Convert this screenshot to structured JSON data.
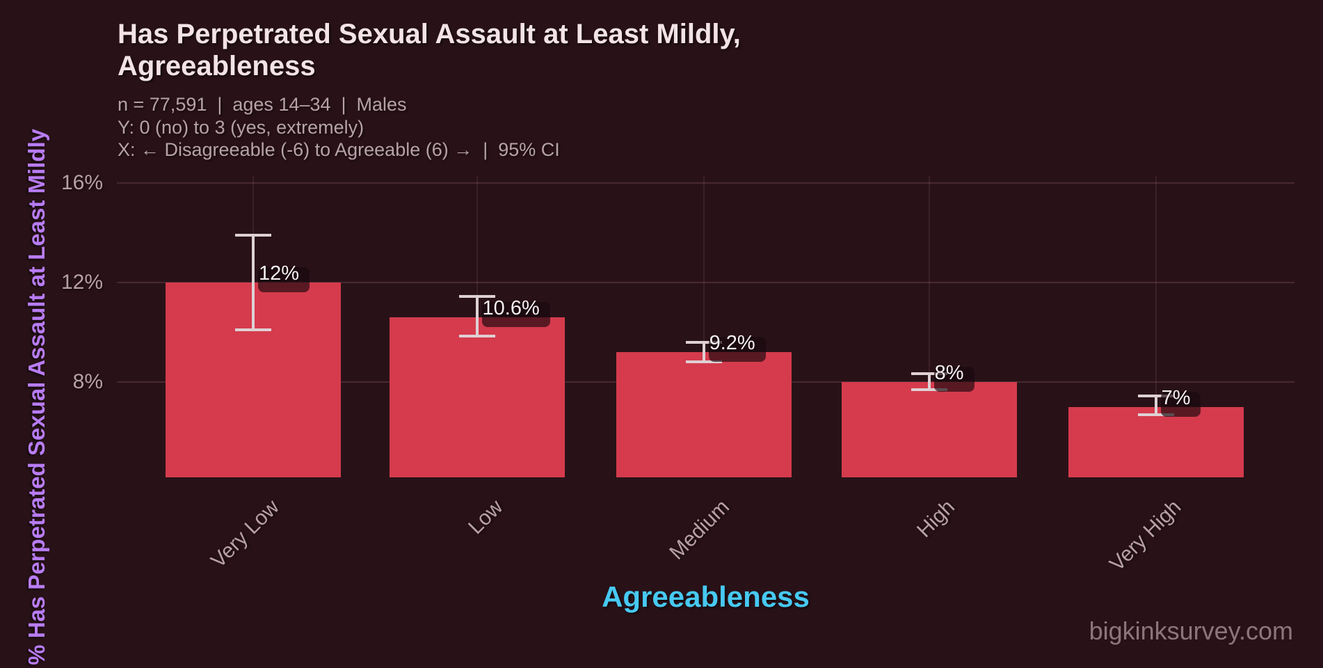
{
  "header": {
    "title_line1": "Has Perpetrated Sexual Assault at Least Mildly,",
    "title_line2": "Agreeableness",
    "subtitle_line1": "n = 77,591  |  ages 14–34  |  Males",
    "subtitle_line2": "Y: 0 (no) to 3 (yes, extremely)",
    "subtitle_line3": "X: ← Disagreeable (-6) to Agreeable (6) →  |  95% CI"
  },
  "watermark": "bigkinksurvey.com",
  "chart_data": {
    "type": "bar",
    "title": "Has Perpetrated Sexual Assault at Least Mildly, Agreeableness",
    "categories": [
      "Very Low",
      "Low",
      "Medium",
      "High",
      "Very High"
    ],
    "values": [
      12,
      10.6,
      9.2,
      8,
      7
    ],
    "value_labels": [
      "12%",
      "10.6%",
      "9.2%",
      "8%",
      "7%"
    ],
    "ci_low": [
      10.1,
      9.85,
      8.8,
      7.7,
      6.7
    ],
    "ci_high": [
      13.9,
      11.45,
      9.6,
      8.35,
      7.45
    ],
    "ci_level": "95% CI",
    "xlabel": "Agreeableness",
    "ylabel": "% Has Perpetrated Sexual Assault at Least Mildly",
    "ylim": [
      4.17,
      16.28
    ],
    "yticks": [
      16,
      12,
      8
    ],
    "ytick_labels": [
      "16%",
      "12%",
      "8%"
    ],
    "grid": true,
    "legend": false,
    "sample_n": "77,591",
    "age_range": "14–34",
    "group": "Males"
  },
  "colors": {
    "background": "#281218",
    "bar": "#d53b4d",
    "error_bar": "#ded0d4",
    "grid_h": "rgba(240,153,175,0.17)",
    "grid_v": "rgba(240,153,175,0.10)",
    "title": "#f3e3e6",
    "subtitle": "#b6a2a8",
    "tick": "#b7a0a5",
    "y_axis_label": "#b87cf4",
    "x_axis_title": "#47c9f2",
    "watermark": "#8e757d",
    "bar_label_text": "#f7eef1",
    "bar_label_bg": "rgba(25,8,13,0.66)"
  }
}
